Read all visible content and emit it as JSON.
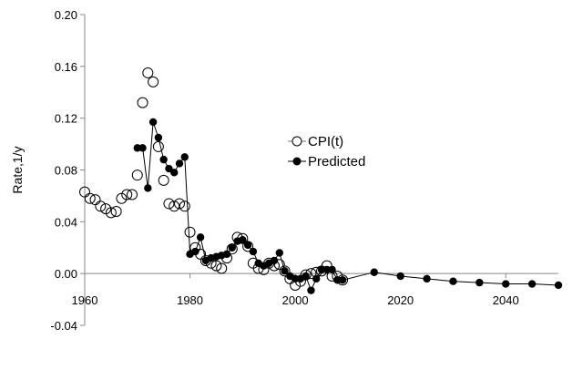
{
  "chart_data": {
    "type": "line",
    "title": "",
    "xlabel": "",
    "ylabel": "Rate,1/y",
    "xlim": [
      1960,
      2050
    ],
    "ylim": [
      -0.04,
      0.2
    ],
    "x_ticks": [
      1960,
      1980,
      2000,
      2020,
      2040
    ],
    "y_ticks": [
      -0.04,
      0.0,
      0.04,
      0.08,
      0.12,
      0.16,
      0.2
    ],
    "x_tick_labels": [
      "1960",
      "1980",
      "2000",
      "2020",
      "2040"
    ],
    "y_tick_labels": [
      "-0.04",
      "0.00",
      "0.04",
      "0.08",
      "0.12",
      "0.16",
      "0.20"
    ],
    "grid": false,
    "legend_position": "right",
    "series": [
      {
        "name": "CPI(t)",
        "marker": "open-circle",
        "line": false,
        "color": "#000000",
        "x": [
          1960,
          1961,
          1962,
          1963,
          1964,
          1965,
          1966,
          1967,
          1968,
          1969,
          1970,
          1971,
          1972,
          1973,
          1974,
          1975,
          1976,
          1977,
          1978,
          1979,
          1980,
          1981,
          1982,
          1983,
          1984,
          1985,
          1986,
          1987,
          1988,
          1989,
          1990,
          1991,
          1992,
          1993,
          1994,
          1995,
          1996,
          1997,
          1998,
          1999,
          2000,
          2001,
          2002,
          2003,
          2004,
          2005,
          2006,
          2007,
          2008,
          2009
        ],
        "y": [
          0.063,
          0.058,
          0.057,
          0.052,
          0.05,
          0.047,
          0.048,
          0.058,
          0.061,
          0.061,
          0.076,
          0.132,
          0.155,
          0.148,
          0.098,
          0.072,
          0.054,
          0.052,
          0.054,
          0.052,
          0.032,
          0.02,
          0.015,
          0.01,
          0.008,
          0.006,
          0.004,
          0.012,
          0.019,
          0.028,
          0.027,
          0.021,
          0.008,
          0.004,
          0.003,
          0.008,
          0.006,
          0.007,
          0.002,
          -0.004,
          -0.009,
          -0.006,
          -0.001,
          0.0,
          0.001,
          0.002,
          0.006,
          -0.002,
          -0.002,
          -0.005
        ]
      },
      {
        "name": "Predicted",
        "marker": "filled-circle",
        "line": true,
        "color": "#000000",
        "x": [
          1970,
          1971,
          1972,
          1973,
          1974,
          1975,
          1976,
          1977,
          1978,
          1979,
          1980,
          1981,
          1982,
          1983,
          1984,
          1985,
          1986,
          1987,
          1988,
          1989,
          1990,
          1991,
          1992,
          1993,
          1994,
          1995,
          1996,
          1997,
          1998,
          1999,
          2000,
          2001,
          2002,
          2003,
          2004,
          2005,
          2006,
          2007,
          2008,
          2009,
          2015,
          2020,
          2025,
          2030,
          2035,
          2040,
          2045,
          2050
        ],
        "y": [
          0.097,
          0.097,
          0.066,
          0.117,
          0.105,
          0.088,
          0.081,
          0.078,
          0.085,
          0.09,
          0.015,
          0.017,
          0.028,
          0.01,
          0.012,
          0.013,
          0.014,
          0.015,
          0.02,
          0.025,
          0.026,
          0.022,
          0.017,
          0.008,
          0.006,
          0.008,
          0.01,
          0.016,
          0.002,
          -0.002,
          -0.004,
          -0.004,
          -0.002,
          -0.013,
          -0.004,
          0.003,
          0.003,
          0.003,
          -0.005,
          -0.005,
          0.001,
          -0.002,
          -0.004,
          -0.006,
          -0.007,
          -0.008,
          -0.008,
          -0.009
        ]
      }
    ]
  }
}
